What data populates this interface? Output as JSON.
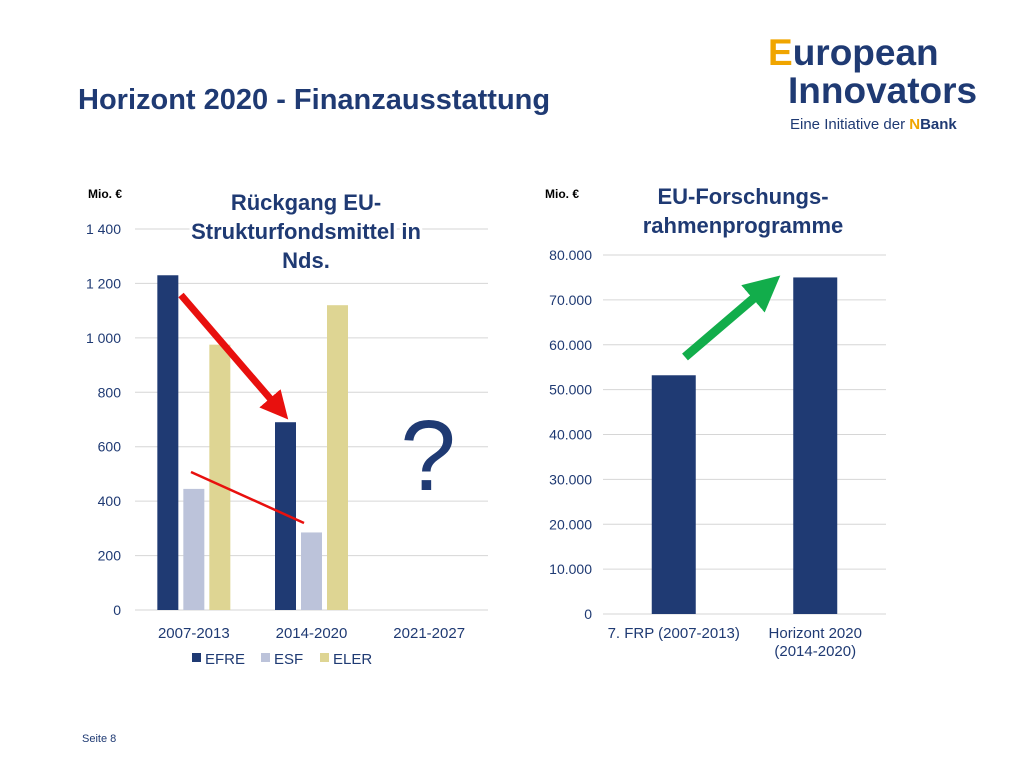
{
  "slide": {
    "title": "Horizont 2020 - Finanzausstattung",
    "page_number": "Seite 8"
  },
  "logo": {
    "first_letter": "E",
    "line1_rest": "uropean",
    "line2": "Innovators",
    "sub_text": "Eine Initiative der ",
    "sub_brand_first": "N",
    "sub_brand_rest": "Bank"
  },
  "chart_data": [
    {
      "type": "bar",
      "title_lines": [
        "Rückgang EU-",
        "Strukturfondsmittel in",
        "Nds."
      ],
      "unit_label": "Mio. €",
      "categories": [
        "2007-2013",
        "2014-2020",
        "2021-2027"
      ],
      "series": [
        {
          "name": "EFRE",
          "color": "#1f3a73",
          "values": [
            1230,
            690,
            null
          ]
        },
        {
          "name": "ESF",
          "color": "#bcc3da",
          "values": [
            445,
            285,
            null
          ]
        },
        {
          "name": "ELER",
          "color": "#ded593",
          "values": [
            975,
            1120,
            null
          ]
        }
      ],
      "yticks": [
        "0",
        "200",
        "400",
        "600",
        "800",
        "1 000",
        "1 200",
        "1 400"
      ],
      "ylim": [
        0,
        1400
      ],
      "grid": true,
      "legend_position": "bottom",
      "annotation": "?",
      "arrow_color": "#e8100e"
    },
    {
      "type": "bar",
      "title_lines": [
        "EU-Forschungs-",
        "rahmenprogramme"
      ],
      "unit_label": "Mio. €",
      "categories": [
        [
          "7. FRP (2007-2013)"
        ],
        [
          "Horizont 2020",
          "(2014-2020)"
        ]
      ],
      "series": [
        {
          "color": "#1f3a73",
          "values": [
            53200,
            75000
          ]
        }
      ],
      "yticks": [
        "0",
        "10.000",
        "20.000",
        "30.000",
        "40.000",
        "50.000",
        "60.000",
        "70.000",
        "80.000"
      ],
      "ylim": [
        0,
        80000
      ],
      "grid": true,
      "arrow_color": "#12ad4b"
    }
  ]
}
